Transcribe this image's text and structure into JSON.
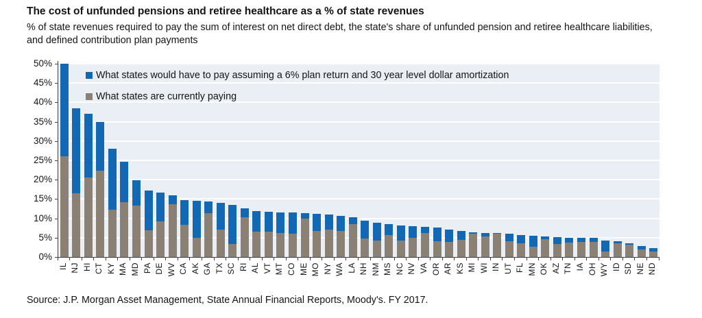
{
  "header": {
    "title": "The cost of unfunded pensions and retiree healthcare as a % of state revenues",
    "subtitle": "% of state revenues required to pay the sum of interest on net direct debt, the state's share of unfunded pension and retiree healthcare liabilities, and defined contribution plan payments"
  },
  "chart_data": {
    "type": "bar",
    "stacked": true,
    "title": "The cost of unfunded pensions and retiree healthcare as a % of state revenues",
    "categories": [
      "IL",
      "NJ",
      "HI",
      "CT",
      "KY",
      "MA",
      "MD",
      "PA",
      "DE",
      "WV",
      "CA",
      "AK",
      "GA",
      "TX",
      "SC",
      "RI",
      "AL",
      "VT",
      "MT",
      "CO",
      "ME",
      "MO",
      "NY",
      "WA",
      "LA",
      "NH",
      "NM",
      "MS",
      "NC",
      "NV",
      "VA",
      "OR",
      "AR",
      "KS",
      "MI",
      "WI",
      "IN",
      "UT",
      "FL",
      "MN",
      "OK",
      "AZ",
      "TN",
      "IA",
      "OH",
      "WY",
      "ID",
      "SD",
      "NE",
      "ND"
    ],
    "series": [
      {
        "name": "What states would have to pay assuming a 6% plan return and 30 year level dollar amortization",
        "meaning": "total required payment (% of state revenues); blue tops the stack",
        "color": "#1268b3",
        "values": [
          50,
          38.5,
          37,
          35,
          28,
          24.6,
          19.9,
          17.2,
          16.7,
          16,
          14.7,
          14.5,
          14.4,
          14.1,
          13.5,
          12.6,
          11.9,
          11.7,
          11.6,
          11.5,
          11.4,
          11.2,
          11,
          10.7,
          10.3,
          9.4,
          8.9,
          8.5,
          8.1,
          8,
          7.8,
          7.6,
          7.1,
          6.7,
          6.4,
          6.2,
          6.2,
          6,
          5.7,
          5.5,
          5.3,
          5.1,
          5,
          5,
          4.9,
          4.3,
          4,
          3.5,
          2.9,
          2.3
        ]
      },
      {
        "name": "What states are currently paying",
        "meaning": "current payment (% of state revenues); gray base of the stack",
        "color": "#8a8174",
        "values": [
          26,
          16.5,
          20.5,
          22.3,
          12.2,
          14.1,
          13.3,
          7,
          9.2,
          13.6,
          8.4,
          4.9,
          11.4,
          7.1,
          3.4,
          10.2,
          6.5,
          6.5,
          6.2,
          6.1,
          10,
          6.7,
          7.1,
          6.8,
          8.6,
          4.8,
          4.3,
          5.6,
          4.3,
          4.9,
          6.2,
          4,
          3.9,
          4.5,
          6,
          5.4,
          6.1,
          4,
          3.6,
          2.6,
          4.6,
          3.4,
          3.7,
          3.9,
          3.9,
          1.5,
          3.5,
          3.2,
          2,
          1.4
        ]
      }
    ],
    "ylim": [
      0,
      50
    ],
    "ytick_step": 5,
    "ytick_labels": [
      "0%",
      "5%",
      "10%",
      "15%",
      "20%",
      "25%",
      "30%",
      "35%",
      "40%",
      "45%",
      "50%"
    ],
    "y_format": "percent",
    "xlabel": "",
    "ylabel": "",
    "grid": "horizontal white gridlines on light blue plot background",
    "legend_position": "inside top-left",
    "clipped_at_ylim": [
      "IL"
    ]
  },
  "footer": {
    "source": "Source: J.P. Morgan Asset Management, State Annual Financial Reports, Moody's. FY 2017."
  },
  "colors": {
    "required_blue": "#1268b3",
    "current_gray": "#8a8174",
    "plot_background": "#e9eff4",
    "gridline": "#ffffff",
    "axis": "#3f3f3f",
    "text": "#141414"
  }
}
